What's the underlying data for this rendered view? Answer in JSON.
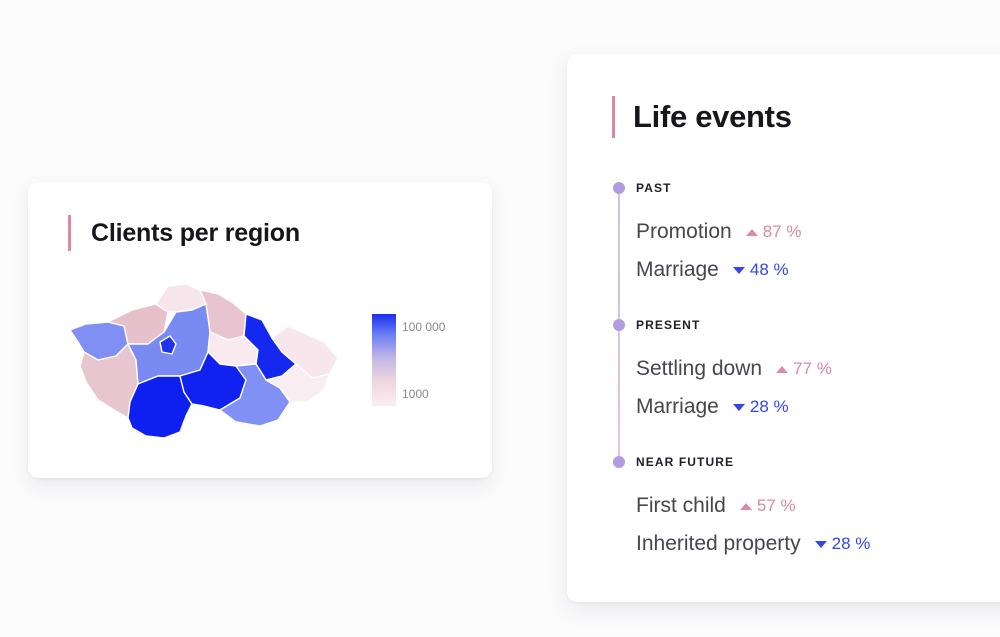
{
  "clients_card": {
    "title": "Clients per region",
    "legend": {
      "max_label": "100 000",
      "min_label": "1000",
      "color_max": "#1a2ef2",
      "color_min": "#fbeef2"
    },
    "map_icon": "czech-regions-choropleth"
  },
  "life_events": {
    "title": "Life events",
    "sections": [
      {
        "label": "PAST",
        "events": [
          {
            "name": "Promotion",
            "change": "87 %",
            "direction": "up"
          },
          {
            "name": "Marriage",
            "change": "48 %",
            "direction": "down"
          }
        ]
      },
      {
        "label": "PRESENT",
        "events": [
          {
            "name": "Settling down",
            "change": "77 %",
            "direction": "up"
          },
          {
            "name": "Marriage",
            "change": "28 %",
            "direction": "down"
          }
        ]
      },
      {
        "label": "NEAR FUTURE",
        "events": [
          {
            "name": "First child",
            "change": "57 %",
            "direction": "up"
          },
          {
            "name": "Inherited property",
            "change": "28 %",
            "direction": "down"
          }
        ]
      }
    ]
  },
  "colors": {
    "accent_pink": "#d98a9d",
    "accent_blue": "#3346ee",
    "timeline_dot": "#b39be0"
  }
}
